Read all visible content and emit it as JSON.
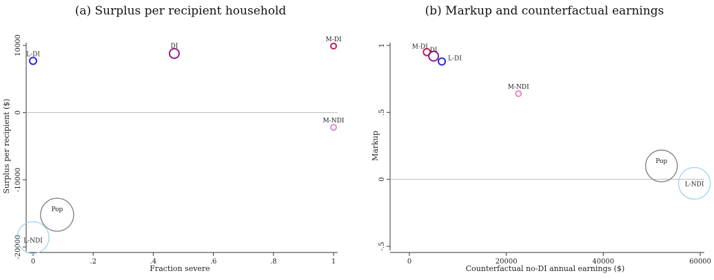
{
  "chart_data": [
    {
      "type": "scatter",
      "title": "(a) Surplus per recipient household",
      "xlabel": "Fraction severe",
      "ylabel": "Surplus per recipient ($)",
      "xlim": [
        0,
        1
      ],
      "ylim": [
        -20000,
        10000
      ],
      "xticks": [
        0,
        0.2,
        0.4,
        0.6,
        0.8,
        1
      ],
      "xtick_labels": [
        "0",
        ".2",
        ".4",
        ".6",
        ".8",
        "1"
      ],
      "yticks": [
        -20000,
        -10000,
        0,
        10000
      ],
      "ytick_labels": [
        "-20000",
        "-10000",
        "0",
        "10000"
      ],
      "hline": 0,
      "grid": false,
      "points": [
        {
          "label": "L-DI",
          "x": 0.0,
          "y": 7700,
          "size": 5,
          "color": "#2a2ad6"
        },
        {
          "label": "DI",
          "x": 0.47,
          "y": 8800,
          "size": 7,
          "color": "#8b1e8b"
        },
        {
          "label": "M-DI",
          "x": 1.0,
          "y": 9900,
          "size": 4,
          "color": "#c21e4a"
        },
        {
          "label": "M-NDI",
          "x": 1.0,
          "y": -2200,
          "size": 4,
          "color": "#e38bc4"
        },
        {
          "label": "Pop",
          "x": 0.08,
          "y": -15200,
          "size": 24,
          "color": "#7a7a7a"
        },
        {
          "label": "L-NDI",
          "x": 0.0,
          "y": -18600,
          "size": 23,
          "color": "#9fd3e8"
        }
      ]
    },
    {
      "type": "scatter",
      "title": "(b) Markup and counterfactual earnings",
      "xlabel": "Counterfactual no-DI annual earnings ($)",
      "ylabel": "Markup",
      "xlim": [
        0,
        60000
      ],
      "ylim": [
        -0.5,
        1
      ],
      "xticks": [
        0,
        20000,
        40000,
        60000
      ],
      "xtick_labels": [
        "0",
        "20000",
        "40000",
        "60000"
      ],
      "yticks": [
        -0.5,
        0,
        0.5,
        1
      ],
      "ytick_labels": [
        "-.5",
        "0",
        ".5",
        "1"
      ],
      "hline": 0,
      "grid": false,
      "points": [
        {
          "label": "M-DI",
          "x": 3600,
          "y": 0.95,
          "size": 5,
          "color": "#c21e4a"
        },
        {
          "label": "DI",
          "x": 5000,
          "y": 0.92,
          "size": 7,
          "color": "#8b1e8b"
        },
        {
          "label": "L-DI",
          "x": 6700,
          "y": 0.88,
          "size": 5,
          "color": "#2a2ad6"
        },
        {
          "label": "M-NDI",
          "x": 22500,
          "y": 0.64,
          "size": 4,
          "color": "#e38bc4"
        },
        {
          "label": "Pop",
          "x": 52000,
          "y": 0.1,
          "size": 23,
          "color": "#7a7a7a"
        },
        {
          "label": "L-NDI",
          "x": 58800,
          "y": -0.03,
          "size": 23,
          "color": "#9fd3e8"
        }
      ]
    }
  ]
}
